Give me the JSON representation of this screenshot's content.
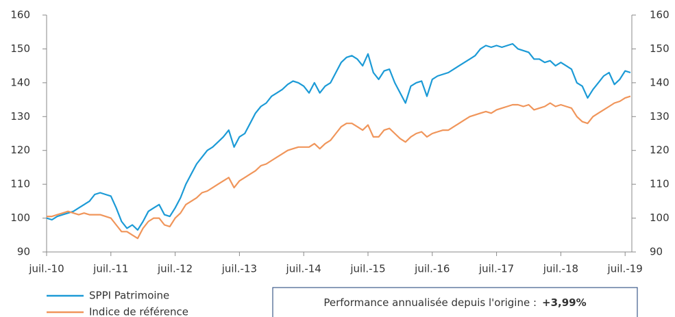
{
  "chart_data": {
    "type": "line",
    "categories": [
      "juil.-10",
      null,
      null,
      null,
      null,
      null,
      null,
      null,
      null,
      null,
      null,
      null,
      "juil.-11",
      null,
      null,
      null,
      null,
      null,
      null,
      null,
      null,
      null,
      null,
      null,
      "juil.-12",
      null,
      null,
      null,
      null,
      null,
      null,
      null,
      null,
      null,
      null,
      null,
      "juil.-13",
      null,
      null,
      null,
      null,
      null,
      null,
      null,
      null,
      null,
      null,
      null,
      "juil.-14",
      null,
      null,
      null,
      null,
      null,
      null,
      null,
      null,
      null,
      null,
      null,
      "juil.-15",
      null,
      null,
      null,
      null,
      null,
      null,
      null,
      null,
      null,
      null,
      null,
      "juil.-16",
      null,
      null,
      null,
      null,
      null,
      null,
      null,
      null,
      null,
      null,
      null,
      "juil.-17",
      null,
      null,
      null,
      null,
      null,
      null,
      null,
      null,
      null,
      null,
      null,
      "juil.-18",
      null,
      null,
      null,
      null,
      null,
      null,
      null,
      null,
      null,
      null,
      null,
      "juil.-19",
      null
    ],
    "series": [
      {
        "name": "SPPI Patrimoine",
        "color": "#1b9ad6",
        "values": [
          100,
          99.5,
          100.5,
          101,
          101.5,
          102,
          103,
          104,
          105,
          107,
          107.5,
          107,
          106.5,
          103,
          99,
          97,
          98,
          96.5,
          99,
          102,
          103,
          104,
          101,
          100.5,
          103,
          106,
          110,
          113,
          116,
          118,
          120,
          121,
          122.5,
          124,
          126,
          121,
          124,
          125,
          128,
          131,
          133,
          134,
          136,
          137,
          138,
          139.5,
          140.5,
          140,
          139,
          137,
          140,
          137,
          139,
          140,
          143,
          146,
          147.5,
          148,
          147,
          145,
          148.5,
          143,
          141,
          143.5,
          144,
          140,
          137,
          134,
          139,
          140,
          140.5,
          136,
          141,
          142,
          142.5,
          143,
          144,
          145,
          146,
          147,
          148,
          150,
          151,
          150.5,
          151,
          150.5,
          151,
          151.5,
          150,
          149.5,
          149,
          147,
          147,
          146,
          146.5,
          145,
          146,
          145,
          144,
          140,
          139,
          135.5,
          138,
          140,
          142,
          143,
          139.5,
          141,
          143.5,
          143
        ]
      },
      {
        "name": "Indice de référence",
        "color": "#f0955a",
        "values": [
          100.5,
          100.5,
          101,
          101.5,
          102,
          101.5,
          101,
          101.5,
          101,
          101,
          101,
          100.5,
          100,
          98,
          96,
          96,
          95,
          94,
          97,
          99,
          100,
          100,
          98,
          97.5,
          100,
          101.5,
          104,
          105,
          106,
          107.5,
          108,
          109,
          110,
          111,
          112,
          109,
          111,
          112,
          113,
          114,
          115.5,
          116,
          117,
          118,
          119,
          120,
          120.5,
          121,
          121,
          121,
          122,
          120.5,
          122,
          123,
          125,
          127,
          128,
          128,
          127,
          126,
          127.5,
          124,
          124,
          126,
          126.5,
          125,
          123.5,
          122.5,
          124,
          125,
          125.5,
          124,
          125,
          125.5,
          126,
          126,
          127,
          128,
          129,
          130,
          130.5,
          131,
          131.5,
          131,
          132,
          132.5,
          133,
          133.5,
          133.5,
          133,
          133.5,
          132,
          132.5,
          133,
          134,
          133,
          133.5,
          133,
          132.5,
          130,
          128.5,
          128,
          130,
          131,
          132,
          133,
          134,
          134.5,
          135.5,
          136
        ]
      }
    ],
    "ylim": [
      90,
      160
    ],
    "yticks": [
      90,
      100,
      110,
      120,
      130,
      140,
      150,
      160
    ],
    "y2lim": [
      90,
      160
    ],
    "y2ticks": [
      90,
      100,
      110,
      120,
      130,
      140,
      150,
      160
    ],
    "grid": false,
    "legend": "bottom-left",
    "annotation": {
      "text": "Performance annualisée depuis l'origine :",
      "value": "+3,99%"
    }
  }
}
